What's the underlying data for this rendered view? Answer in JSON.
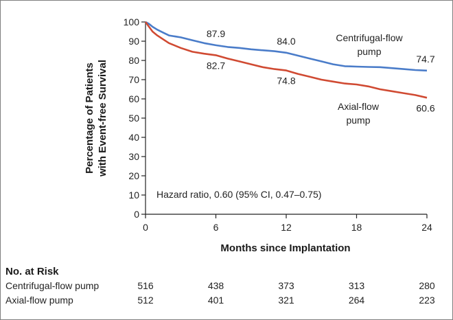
{
  "chart_data": {
    "type": "line",
    "title": "",
    "xlabel": "Months since Implantation",
    "ylabel_lines": [
      "Percentage of Patients",
      "with Event-free Survival"
    ],
    "xlim": [
      0,
      24
    ],
    "ylim": [
      0,
      100
    ],
    "x_ticks": [
      0,
      6,
      12,
      18,
      24
    ],
    "y_ticks": [
      0,
      10,
      20,
      30,
      40,
      50,
      60,
      70,
      80,
      90,
      100
    ],
    "grid": false,
    "series": [
      {
        "name": "Centrifugal-flow pump",
        "legend_lines": [
          "Centrifugal-flow",
          "pump"
        ],
        "color": "#4a7cc9",
        "points": [
          [
            0,
            100
          ],
          [
            0.3,
            99
          ],
          [
            0.6,
            97.5
          ],
          [
            1,
            96
          ],
          [
            1.5,
            94.5
          ],
          [
            2,
            93
          ],
          [
            3,
            92
          ],
          [
            4,
            90.5
          ],
          [
            5,
            89
          ],
          [
            6,
            87.9
          ],
          [
            7,
            87
          ],
          [
            8,
            86.5
          ],
          [
            9,
            85.8
          ],
          [
            10,
            85.3
          ],
          [
            11,
            84.8
          ],
          [
            12,
            84.0
          ],
          [
            13,
            82.5
          ],
          [
            14,
            81
          ],
          [
            15,
            79.5
          ],
          [
            16,
            78
          ],
          [
            17,
            77
          ],
          [
            18,
            76.8
          ],
          [
            19,
            76.6
          ],
          [
            20,
            76.5
          ],
          [
            21,
            76
          ],
          [
            22,
            75.5
          ],
          [
            23,
            75
          ],
          [
            24,
            74.7
          ]
        ],
        "labels": [
          {
            "x": 6,
            "y": 87.9,
            "text": "87.9"
          },
          {
            "x": 12,
            "y": 84.0,
            "text": "84.0"
          },
          {
            "x": 24,
            "y": 74.7,
            "text": "74.7"
          }
        ]
      },
      {
        "name": "Axial-flow pump",
        "legend_lines": [
          "Axial-flow",
          "pump"
        ],
        "color": "#d04a32",
        "points": [
          [
            0,
            100
          ],
          [
            0.3,
            97.5
          ],
          [
            0.6,
            95
          ],
          [
            1,
            93
          ],
          [
            1.5,
            91
          ],
          [
            2,
            89
          ],
          [
            3,
            86.5
          ],
          [
            4,
            84.5
          ],
          [
            5,
            83.5
          ],
          [
            6,
            82.7
          ],
          [
            7,
            81
          ],
          [
            8,
            79.5
          ],
          [
            9,
            78
          ],
          [
            10,
            76.5
          ],
          [
            11,
            75.5
          ],
          [
            12,
            74.8
          ],
          [
            13,
            73
          ],
          [
            14,
            71.5
          ],
          [
            15,
            70
          ],
          [
            16,
            69
          ],
          [
            17,
            68
          ],
          [
            18,
            67.5
          ],
          [
            19,
            66.5
          ],
          [
            20,
            65
          ],
          [
            21,
            64
          ],
          [
            22,
            63
          ],
          [
            23,
            62
          ],
          [
            24,
            60.6
          ]
        ],
        "labels": [
          {
            "x": 6,
            "y": 82.7,
            "text": "82.7"
          },
          {
            "x": 12,
            "y": 74.8,
            "text": "74.8"
          },
          {
            "x": 24,
            "y": 60.6,
            "text": "60.6"
          }
        ]
      }
    ],
    "annotations": [
      "Hazard ratio, 0.60 (95% CI, 0.47–0.75)"
    ]
  },
  "risk_table": {
    "title": "No. at Risk",
    "rows": [
      {
        "label": "Centrifugal-flow pump",
        "values": [
          "516",
          "438",
          "373",
          "313",
          "280"
        ]
      },
      {
        "label": "Axial-flow pump",
        "values": [
          "512",
          "401",
          "321",
          "264",
          "223"
        ]
      }
    ]
  }
}
